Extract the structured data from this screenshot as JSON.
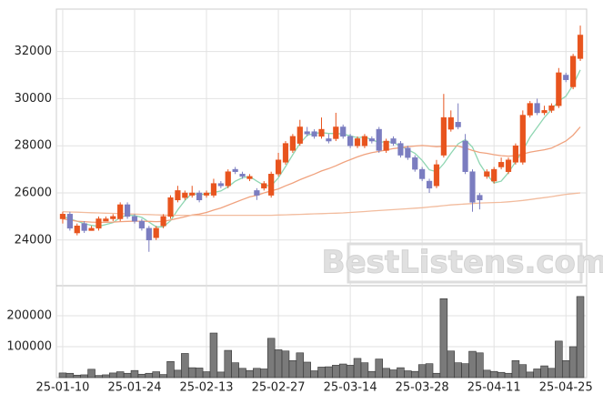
{
  "chart_data": {
    "type": "candlestick",
    "categories": [
      "25-01-10",
      null,
      null,
      null,
      null,
      null,
      null,
      null,
      null,
      null,
      "25-01-24",
      null,
      null,
      null,
      null,
      null,
      null,
      null,
      null,
      null,
      "25-02-13",
      null,
      null,
      null,
      null,
      null,
      null,
      null,
      null,
      null,
      "25-02-27",
      null,
      null,
      null,
      null,
      null,
      null,
      null,
      null,
      null,
      "25-03-14",
      null,
      null,
      null,
      null,
      null,
      null,
      null,
      null,
      null,
      "25-03-28",
      null,
      null,
      null,
      null,
      null,
      null,
      null,
      null,
      null,
      "25-04-11",
      null,
      null,
      null,
      null,
      null,
      null,
      null,
      null,
      null,
      "25-04-25",
      null,
      null
    ],
    "open": [
      24900,
      25100,
      24300,
      24700,
      24400,
      24500,
      24800,
      24900,
      24900,
      25500,
      25000,
      24800,
      24500,
      24100,
      24600,
      25000,
      25700,
      25800,
      25900,
      26000,
      25900,
      25900,
      26400,
      26300,
      27000,
      26800,
      26600,
      26100,
      26200,
      25900,
      26800,
      27300,
      27800,
      28100,
      28600,
      28600,
      28400,
      28300,
      28300,
      28800,
      28400,
      28000,
      28000,
      28300,
      28700,
      27800,
      28300,
      28100,
      27900,
      27500,
      27000,
      26500,
      26300,
      27600,
      28700,
      29000,
      28200,
      26900,
      25900,
      26700,
      26500,
      27100,
      26900,
      27300,
      27300,
      29300,
      29800,
      29400,
      29500,
      29700,
      31000,
      30500,
      31700
    ],
    "high": [
      25200,
      25200,
      24700,
      24800,
      24600,
      25000,
      25000,
      25100,
      25600,
      25600,
      25100,
      24900,
      24600,
      24600,
      25100,
      25900,
      26300,
      26100,
      26300,
      26100,
      26100,
      26600,
      26500,
      27000,
      27100,
      26900,
      26800,
      26200,
      26500,
      26900,
      27700,
      28200,
      28500,
      29100,
      28800,
      28700,
      29200,
      28500,
      29400,
      28900,
      28500,
      28400,
      28500,
      28400,
      28800,
      28300,
      28400,
      28200,
      28000,
      27600,
      27100,
      26600,
      27400,
      30200,
      29500,
      29800,
      28500,
      27000,
      26000,
      27000,
      27100,
      27500,
      27500,
      28100,
      29500,
      29900,
      30000,
      29700,
      29800,
      31300,
      31100,
      31900,
      33100
    ],
    "low": [
      24700,
      24400,
      24200,
      24300,
      24400,
      24400,
      24800,
      24800,
      24800,
      24900,
      24700,
      24400,
      23500,
      24000,
      24500,
      24900,
      25600,
      25700,
      25800,
      25600,
      25800,
      25800,
      26200,
      26200,
      26800,
      26600,
      26500,
      25700,
      26100,
      25800,
      26700,
      27200,
      27700,
      28000,
      28400,
      28300,
      28300,
      28100,
      28200,
      28300,
      27900,
      27900,
      27900,
      28100,
      27700,
      27700,
      28000,
      27500,
      27400,
      26900,
      26500,
      26000,
      26200,
      27500,
      28600,
      28700,
      26800,
      25200,
      25300,
      26600,
      26400,
      27000,
      26800,
      27200,
      27200,
      29200,
      29300,
      29300,
      29400,
      29600,
      30700,
      30400,
      31600
    ],
    "close": [
      25100,
      24500,
      24600,
      24400,
      24500,
      24900,
      24900,
      25000,
      25500,
      25000,
      24800,
      24500,
      24000,
      24500,
      25000,
      25800,
      26100,
      26000,
      26000,
      25700,
      26000,
      26400,
      26300,
      26900,
      26900,
      26700,
      26700,
      25900,
      26400,
      26800,
      27400,
      28100,
      28400,
      28800,
      28500,
      28400,
      28700,
      28200,
      28800,
      28400,
      28000,
      28300,
      28400,
      28200,
      27800,
      28200,
      28100,
      27600,
      27500,
      27000,
      26600,
      26200,
      27200,
      29200,
      29200,
      28800,
      26900,
      25600,
      25700,
      26900,
      27000,
      27300,
      27400,
      28000,
      29300,
      29800,
      29400,
      29500,
      29700,
      31100,
      30800,
      31800,
      32700
    ],
    "color_up": "#e8541e",
    "color_down": "#7b7dc0",
    "ylim": [
      22100,
      33800
    ],
    "yticks": [
      24000,
      26000,
      28000,
      30000,
      32000
    ],
    "grid": true,
    "moving_averages": [
      {
        "color": "#8fd6b2",
        "values": [
          25000,
          24900,
          24800,
          24700,
          24620,
          24580,
          24660,
          24740,
          24960,
          25060,
          25040,
          24960,
          24760,
          24560,
          24560,
          24820,
          25280,
          25680,
          25980,
          25920,
          25960,
          26020,
          26080,
          26260,
          26500,
          26640,
          26700,
          26500,
          26320,
          26300,
          26640,
          27120,
          27620,
          28100,
          28440,
          28520,
          28560,
          28520,
          28520,
          28500,
          28420,
          28340,
          28380,
          28260,
          28140,
          28180,
          28140,
          27980,
          27840,
          27680,
          27380,
          26980,
          26900,
          27240,
          27680,
          28080,
          28260,
          27940,
          27240,
          26780,
          26420,
          26500,
          26860,
          27320,
          27800,
          28360,
          28780,
          29200,
          29540,
          29900,
          30100,
          30580,
          31220
        ]
      },
      {
        "color": "#f0a27e",
        "values": [
          24900,
          24850,
          24800,
          24780,
          24760,
          24750,
          24750,
          24760,
          24780,
          24790,
          24800,
          24800,
          24790,
          24780,
          24790,
          24850,
          24920,
          24990,
          25060,
          25100,
          25170,
          25270,
          25360,
          25480,
          25600,
          25720,
          25830,
          25900,
          26000,
          26090,
          26170,
          26300,
          26420,
          26560,
          26680,
          26800,
          26930,
          27030,
          27150,
          27290,
          27410,
          27530,
          27630,
          27710,
          27760,
          27820,
          27880,
          27920,
          27960,
          27990,
          28010,
          27990,
          27960,
          27980,
          27990,
          27990,
          27900,
          27800,
          27720,
          27680,
          27620,
          27580,
          27560,
          27580,
          27650,
          27730,
          27780,
          27830,
          27900,
          28050,
          28200,
          28450,
          28800
        ]
      },
      {
        "color": "#f2bc9e",
        "values": [
          25200,
          25190,
          25180,
          25170,
          25160,
          25150,
          25140,
          25130,
          25120,
          25110,
          25100,
          25090,
          25080,
          25070,
          25060,
          25050,
          25050,
          25050,
          25050,
          25050,
          25050,
          25050,
          25050,
          25050,
          25050,
          25050,
          25050,
          25050,
          25050,
          25050,
          25060,
          25070,
          25080,
          25090,
          25100,
          25110,
          25120,
          25130,
          25140,
          25150,
          25170,
          25190,
          25210,
          25230,
          25250,
          25270,
          25290,
          25310,
          25330,
          25350,
          25370,
          25400,
          25430,
          25460,
          25490,
          25510,
          25530,
          25550,
          25570,
          25580,
          25590,
          25600,
          25620,
          25650,
          25680,
          25720,
          25760,
          25800,
          25840,
          25890,
          25940,
          25970,
          26000
        ]
      }
    ],
    "volume": {
      "color": "#7a7a7a",
      "values": [
        15000,
        14000,
        8000,
        9000,
        27000,
        7000,
        9000,
        15000,
        19000,
        14000,
        23000,
        11000,
        14000,
        19000,
        10000,
        52000,
        24000,
        78000,
        32000,
        31000,
        19000,
        144000,
        18000,
        88000,
        48000,
        30000,
        23000,
        30000,
        28000,
        127000,
        90000,
        86000,
        55000,
        80000,
        50000,
        22000,
        34000,
        35000,
        40000,
        44000,
        40000,
        62000,
        48000,
        20000,
        60000,
        30000,
        25000,
        32000,
        22000,
        20000,
        42000,
        45000,
        14000,
        255000,
        86000,
        48000,
        45000,
        85000,
        80000,
        24000,
        20000,
        17000,
        14000,
        55000,
        42000,
        18000,
        28000,
        38000,
        30000,
        118000,
        55000,
        100000,
        262000
      ],
      "ylim": [
        0,
        291000
      ],
      "yticks": [
        100000,
        200000
      ]
    },
    "watermark": "BestListens.com"
  }
}
